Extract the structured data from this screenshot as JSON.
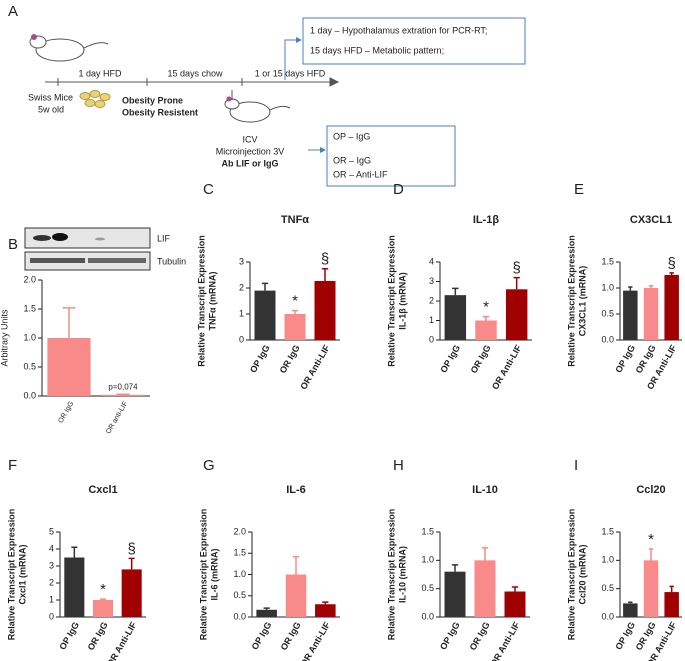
{
  "diagram": {
    "panel": "A",
    "timeline": [
      "1 day HFD",
      "15 days chow",
      "1 or 15 days HFD"
    ],
    "mice": [
      "Swiss Mice",
      "5w old"
    ],
    "groups": [
      "Obesity Prone",
      "Obesity Resistent"
    ],
    "icv": [
      "ICV",
      "Microinjection 3V",
      "Ab LIF or IgG"
    ],
    "outcomes": [
      "1 day – Hypothalamus extration for PCR-RT;",
      "15 days HFD – Metabolic pattern;"
    ],
    "treatments": [
      "OP – IgG",
      "OR – IgG",
      "OR – Anti-LIF"
    ]
  },
  "blot": {
    "labels": [
      "LIF",
      "Tubulin"
    ]
  },
  "chart_data": [
    {
      "type": "bar",
      "panel": "B",
      "ylabel": [
        "Arbitrary Units"
      ],
      "categories": [
        "OR IgG",
        "OR anti-LIF"
      ],
      "colors": [
        "#f98a8a",
        "#f98a8a"
      ],
      "values": [
        1.0,
        0.02
      ],
      "errors": [
        0.52,
        0.01
      ],
      "annotations": [
        null,
        "p=0,074"
      ],
      "ylim": [
        0,
        2
      ],
      "yticks": [
        {
          "value": 0,
          "label": "0.0"
        },
        0.5,
        {
          "value": 1,
          "label": "1.0"
        },
        1.5,
        {
          "value": 2,
          "label": "2.0"
        }
      ]
    },
    {
      "type": "bar",
      "panel": "C",
      "title": "TNFα",
      "ylabel": [
        "Relative Transcript Expression",
        "TNFα (mRNA)"
      ],
      "categories": [
        "OP IgG",
        "OR IgG",
        "OR Anti-LIF"
      ],
      "colors": [
        "#333333",
        "#f98a8a",
        "#a10000"
      ],
      "values": [
        1.9,
        1.0,
        2.27
      ],
      "errors": [
        0.28,
        0.13,
        0.47
      ],
      "annotations": [
        null,
        "*",
        "§"
      ],
      "ylim": [
        0,
        3
      ],
      "yticks": [
        0,
        1,
        2,
        3
      ]
    },
    {
      "type": "bar",
      "panel": "D",
      "title": "IL-1β",
      "ylabel": [
        "Relative Transcript Expression",
        "IL-1β (mRNA)"
      ],
      "categories": [
        "OP IgG",
        "OR IgG",
        "OR Anti-LIF"
      ],
      "colors": [
        "#333333",
        "#f98a8a",
        "#a10000"
      ],
      "values": [
        2.3,
        1.0,
        2.6
      ],
      "errors": [
        0.35,
        0.2,
        0.6
      ],
      "annotations": [
        null,
        "*",
        "§"
      ],
      "ylim": [
        0,
        4
      ],
      "yticks": [
        0,
        1,
        2,
        3,
        4
      ]
    },
    {
      "type": "bar",
      "panel": "E",
      "title": "CX3CL1",
      "ylabel": [
        "Relative Transcript Expression",
        "CX3CL1 (mRNA)"
      ],
      "categories": [
        "OP IgG",
        "OR IgG",
        "OR Anti-LIF"
      ],
      "colors": [
        "#333333",
        "#f98a8a",
        "#a10000"
      ],
      "values": [
        0.95,
        1.0,
        1.25
      ],
      "errors": [
        0.07,
        0.04,
        0.04
      ],
      "annotations": [
        null,
        null,
        "§"
      ],
      "ylim": [
        0,
        1.5
      ],
      "yticks": [
        {
          "value": 0,
          "label": "0.0"
        },
        0.5,
        {
          "value": 1,
          "label": "1.0"
        },
        1.5
      ]
    },
    {
      "type": "bar",
      "panel": "F",
      "title": "Cxcl1",
      "ylabel": [
        "Relative Transcript Expression",
        "Cxcl1 (mRNA)"
      ],
      "categories": [
        "OP IgG",
        "OR IgG",
        "OR Anti-LIF"
      ],
      "colors": [
        "#333333",
        "#f98a8a",
        "#a10000"
      ],
      "values": [
        3.5,
        1.0,
        2.8
      ],
      "errors": [
        0.6,
        0.05,
        0.65
      ],
      "annotations": [
        null,
        "*",
        "§"
      ],
      "ylim": [
        0,
        5
      ],
      "yticks": [
        0,
        1,
        2,
        3,
        4,
        5
      ]
    },
    {
      "type": "bar",
      "panel": "G",
      "title": "IL-6",
      "ylabel": [
        "Relative Transcript Expression",
        "IL-6 (mRNA)"
      ],
      "categories": [
        "OP IgG",
        "OR IgG",
        "OR Anti-LIF"
      ],
      "colors": [
        "#333333",
        "#f98a8a",
        "#a10000"
      ],
      "values": [
        0.17,
        1.0,
        0.3
      ],
      "errors": [
        0.04,
        0.42,
        0.05
      ],
      "annotations": [
        null,
        null,
        null
      ],
      "ylim": [
        0,
        2
      ],
      "yticks": [
        {
          "value": 0,
          "label": "0.0"
        },
        0.5,
        {
          "value": 1,
          "label": "1.0"
        },
        1.5,
        {
          "value": 2,
          "label": "2.0"
        }
      ]
    },
    {
      "type": "bar",
      "panel": "H",
      "title": "IL-10",
      "ylabel": [
        "Relative Transcript Expression",
        "IL-10 (mRNA)"
      ],
      "categories": [
        "OP IgG",
        "OR IgG",
        "OR Anti-LIF"
      ],
      "colors": [
        "#333333",
        "#f98a8a",
        "#a10000"
      ],
      "values": [
        0.8,
        1.0,
        0.45
      ],
      "errors": [
        0.12,
        0.22,
        0.08
      ],
      "annotations": [
        null,
        null,
        null
      ],
      "ylim": [
        0,
        1.5
      ],
      "yticks": [
        {
          "value": 0,
          "label": "0.0"
        },
        0.5,
        {
          "value": 1,
          "label": "1.0"
        },
        1.5
      ]
    },
    {
      "type": "bar",
      "panel": "I",
      "title": "Ccl20",
      "ylabel": [
        "Relative Transcript Expression",
        "Ccl20 (mRNA)"
      ],
      "categories": [
        "OP IgG",
        "OR IgG",
        "OR Anti-LIF"
      ],
      "colors": [
        "#333333",
        "#f98a8a",
        "#a10000"
      ],
      "values": [
        0.24,
        1.0,
        0.44
      ],
      "errors": [
        0.02,
        0.2,
        0.1
      ],
      "annotations": [
        null,
        "*",
        null
      ],
      "ylim": [
        0,
        1.5
      ],
      "yticks": [
        {
          "value": 0,
          "label": "0.0"
        },
        0.5,
        {
          "value": 1,
          "label": "1.0"
        },
        1.5
      ]
    }
  ]
}
